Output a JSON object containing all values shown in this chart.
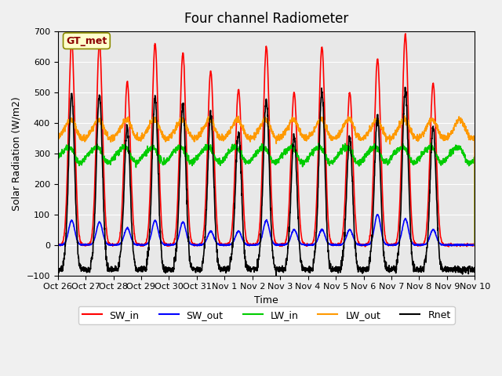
{
  "title": "Four channel Radiometer",
  "xlabel": "Time",
  "ylabel": "Solar Radiation (W/m2)",
  "ylim": [
    -100,
    700
  ],
  "yticks": [
    -100,
    0,
    100,
    200,
    300,
    400,
    500,
    600,
    700
  ],
  "colors": {
    "SW_in": "#ff0000",
    "SW_out": "#0000ff",
    "LW_in": "#00cc00",
    "LW_out": "#ff9900",
    "Rnet": "#000000"
  },
  "line_widths": {
    "SW_in": 1.2,
    "SW_out": 1.2,
    "LW_in": 1.2,
    "LW_out": 1.2,
    "Rnet": 1.2
  },
  "legend_label": "GT_met",
  "legend_label_color": "#8b0000",
  "legend_label_bg": "#ffffcc",
  "background_color": "#e8e8e8",
  "x_tick_labels": [
    "Oct 26",
    "Oct 27",
    "Oct 28",
    "Oct 29",
    "Oct 30",
    "Oct 31",
    "Nov 1",
    "Nov 2",
    "Nov 3",
    "Nov 4",
    "Nov 5",
    "Nov 6",
    "Nov 7",
    "Nov 8",
    "Nov 9",
    "Nov 10"
  ],
  "n_days": 15,
  "points_per_day": 144
}
